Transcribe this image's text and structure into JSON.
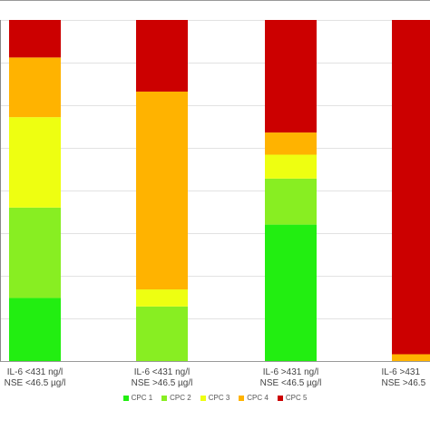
{
  "chart_data": {
    "type": "bar",
    "stacked": true,
    "percent": true,
    "categories": [
      [
        "IL-6 <431 ng/l",
        "NSE <46.5 µg/l"
      ],
      [
        "IL-6 <431 ng/l",
        "NSE >46.5 µg/l"
      ],
      [
        "IL-6 >431 ng/l",
        "NSE <46.5 µg/l"
      ],
      [
        "IL-6 >431",
        "NSE >46.5"
      ]
    ],
    "series": [
      {
        "name": "CPC 1",
        "color": "#22ee11",
        "values": [
          18.5,
          0,
          40,
          0
        ]
      },
      {
        "name": "CPC 2",
        "color": "#88ee22",
        "values": [
          26.5,
          16,
          13.5,
          0
        ]
      },
      {
        "name": "CPC 3",
        "color": "#eeff11",
        "values": [
          26.5,
          5,
          7,
          0
        ]
      },
      {
        "name": "CPC 4",
        "color": "#ffb300",
        "values": [
          17.5,
          58,
          6.5,
          2
        ]
      },
      {
        "name": "CPC 5",
        "color": "#cc0000",
        "values": [
          11,
          21,
          33,
          98
        ]
      }
    ],
    "ylim": [
      0,
      100
    ],
    "grid": true,
    "legend_position": "bottom"
  }
}
